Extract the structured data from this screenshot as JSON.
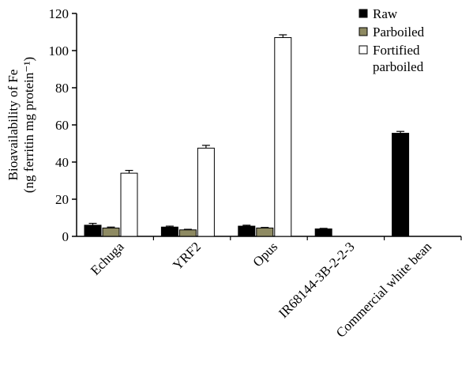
{
  "chart_data": {
    "type": "bar",
    "categories": [
      "Echuga",
      "YRF2",
      "Opus",
      "IR68144-3B-2-2-3",
      "Commercial white bean"
    ],
    "series": [
      {
        "name": "Raw",
        "color": "#000000",
        "values": [
          6,
          5,
          5.5,
          4,
          55.5
        ],
        "errors": [
          1,
          0.5,
          0.5,
          0.3,
          1
        ]
      },
      {
        "name": "Parboiled",
        "color": "#8e8a62",
        "values": [
          4.5,
          3.5,
          4.5,
          null,
          null
        ],
        "errors": [
          0.5,
          0.3,
          0.3,
          null,
          null
        ]
      },
      {
        "name": "Fortified parboiled",
        "legend_lines": [
          "Fortified",
          "parboiled"
        ],
        "color": "#ffffff",
        "values": [
          34,
          47.5,
          107,
          null,
          null
        ],
        "errors": [
          1.5,
          1.5,
          1.5,
          null,
          null
        ]
      }
    ],
    "ylabel_lines": [
      "Bioavailability of Fe",
      "(ng ferritin mg protein⁻¹)"
    ],
    "ylim": [
      0,
      120
    ],
    "yticks": [
      0,
      20,
      40,
      60,
      80,
      100,
      120
    ],
    "legend_position": "top-right",
    "grid": false
  }
}
